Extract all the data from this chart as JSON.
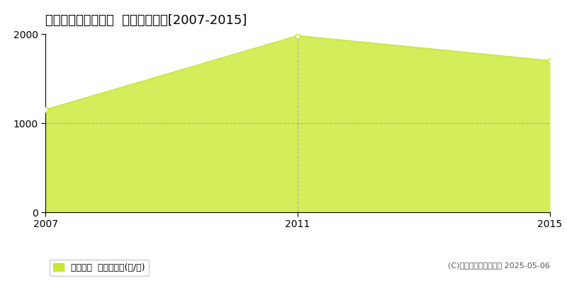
{
  "title": "東蒲原郡阿賀町細越  林地価格推移[2007-2015]",
  "years": [
    2007,
    2011,
    2015
  ],
  "values": [
    1150,
    1980,
    1700
  ],
  "line_color": "#c8e632",
  "fill_color": "#d4ed5a",
  "fill_alpha": 1.0,
  "marker_color": "#c8e632",
  "marker_size": 5,
  "marker_linewidth": 1.2,
  "xlim": [
    2007,
    2015
  ],
  "ylim": [
    0,
    2000
  ],
  "yticks": [
    0,
    1000,
    2000
  ],
  "xticks": [
    2007,
    2011,
    2015
  ],
  "grid_color": "#aaaaaa",
  "dashed_x": 2011,
  "legend_label": "林地価格  平均坪単価(円/坪)",
  "legend_color": "#c8e632",
  "copyright": "(C)土地価格ドットコム 2025-05-06",
  "background_color": "#ffffff",
  "title_fontsize": 13,
  "axis_fontsize": 10,
  "legend_fontsize": 9
}
